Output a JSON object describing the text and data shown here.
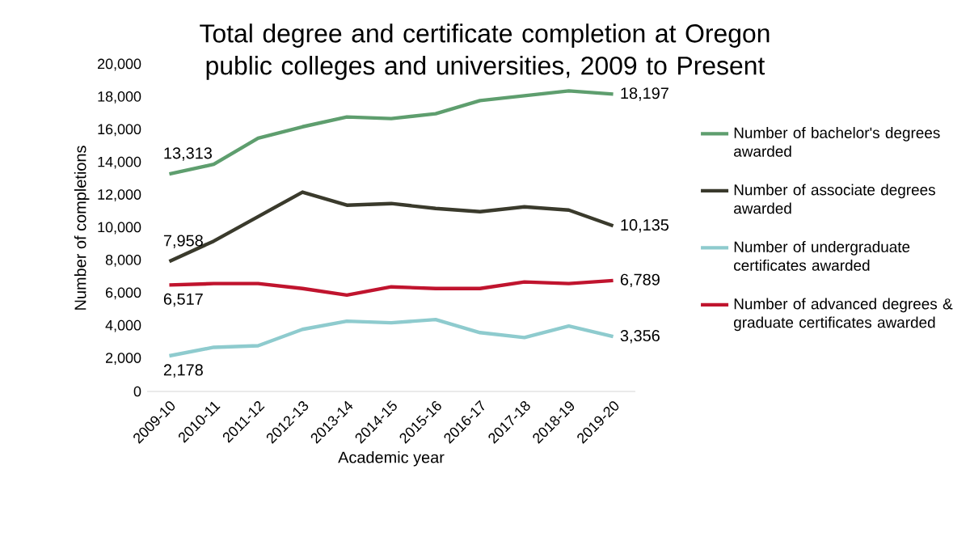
{
  "chart_data": {
    "type": "line",
    "title": "Total degree and certificate completion at Oregon public colleges and universities, 2009 to Present",
    "xlabel": "Academic year",
    "ylabel": "Number of completions",
    "categories": [
      "2009-10",
      "2010-11",
      "2011-12",
      "2012-13",
      "2013-14",
      "2014-15",
      "2015-16",
      "2016-17",
      "2017-18",
      "2018-19",
      "2019-20"
    ],
    "ylim": [
      0,
      20000
    ],
    "yticks": [
      0,
      {
        "value": 2000,
        "label": "2,000"
      },
      {
        "value": 4000,
        "label": "4,000"
      },
      {
        "value": 6000,
        "label": "6,000"
      },
      {
        "value": 8000,
        "label": "8,000"
      },
      {
        "value": 10000,
        "label": "10,000"
      },
      {
        "value": 12000,
        "label": "12,000"
      },
      {
        "value": 14000,
        "label": "14,000"
      },
      {
        "value": 16000,
        "label": "16,000"
      },
      {
        "value": 18000,
        "label": "18,000"
      },
      {
        "value": 20000,
        "label": "20,000"
      }
    ],
    "grid": false,
    "legend": "right",
    "series": [
      {
        "name": "Number of bachelor's degrees awarded",
        "color": "#5e9e6e",
        "values": [
          13313,
          13900,
          15500,
          16200,
          16800,
          16700,
          17000,
          17800,
          18100,
          18400,
          18197
        ],
        "value_labels": [
          "13,313",
          null,
          null,
          null,
          null,
          null,
          null,
          null,
          null,
          null,
          "18,197"
        ]
      },
      {
        "name": "Number of associate degrees awarded",
        "color": "#3a3a2c",
        "values": [
          7958,
          9200,
          10700,
          12200,
          11400,
          11500,
          11200,
          11000,
          11300,
          11100,
          10135
        ],
        "value_labels": [
          "7,958",
          null,
          null,
          null,
          null,
          null,
          null,
          null,
          null,
          null,
          "10,135"
        ]
      },
      {
        "name": "Number of undergraduate certificates awarded",
        "color": "#8ecbce",
        "values": [
          2178,
          2700,
          2800,
          3800,
          4300,
          4200,
          4400,
          3600,
          3300,
          4000,
          3356
        ],
        "value_labels": [
          "2,178",
          null,
          null,
          null,
          null,
          null,
          null,
          null,
          null,
          null,
          "3,356"
        ]
      },
      {
        "name": "Number of advanced degrees & graduate certificates awarded",
        "color": "#c0142e",
        "values": [
          6517,
          6600,
          6600,
          6300,
          5900,
          6400,
          6300,
          6300,
          6700,
          6600,
          6789
        ],
        "value_labels": [
          "6,517",
          null,
          null,
          null,
          null,
          null,
          null,
          null,
          null,
          null,
          "6,789"
        ]
      }
    ]
  }
}
